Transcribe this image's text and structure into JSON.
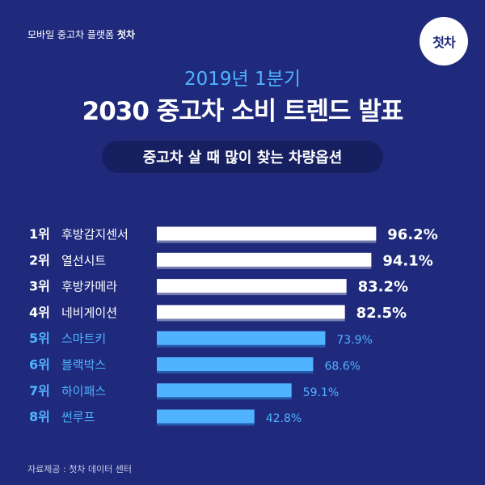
{
  "header": {
    "brand_prefix": "모바일 중고차 플랫폼 ",
    "brand_name": "첫차",
    "logo_text": "첫차",
    "subtitle": "2019년 1분기",
    "title": "2030 중고차 소비 트렌드 발표",
    "pill": "중고차 살 때 많이 찾는 차량옵션"
  },
  "chart_data": {
    "type": "bar",
    "orientation": "horizontal",
    "ranks": [
      "1위",
      "2위",
      "3위",
      "4위",
      "5위",
      "6위",
      "7위",
      "8위"
    ],
    "categories": [
      "후방감지센서",
      "열선시트",
      "후방카메라",
      "네비게이션",
      "스마트키",
      "블랙박스",
      "하이패스",
      "썬루프"
    ],
    "values": [
      96.2,
      94.1,
      83.2,
      82.5,
      73.9,
      68.6,
      59.1,
      42.8
    ],
    "value_labels": [
      "96.2%",
      "94.1%",
      "83.2%",
      "82.5%",
      "73.9%",
      "68.6%",
      "59.1%",
      "42.8%"
    ],
    "colors": {
      "top_bar": "#ffffff",
      "top_text": "#ffffff",
      "rest_bar": "#4fb3ff",
      "rest_text": "#4fb3ff"
    }
  },
  "footer": {
    "source": "자료제공 : 첫차 데이터 센터"
  }
}
